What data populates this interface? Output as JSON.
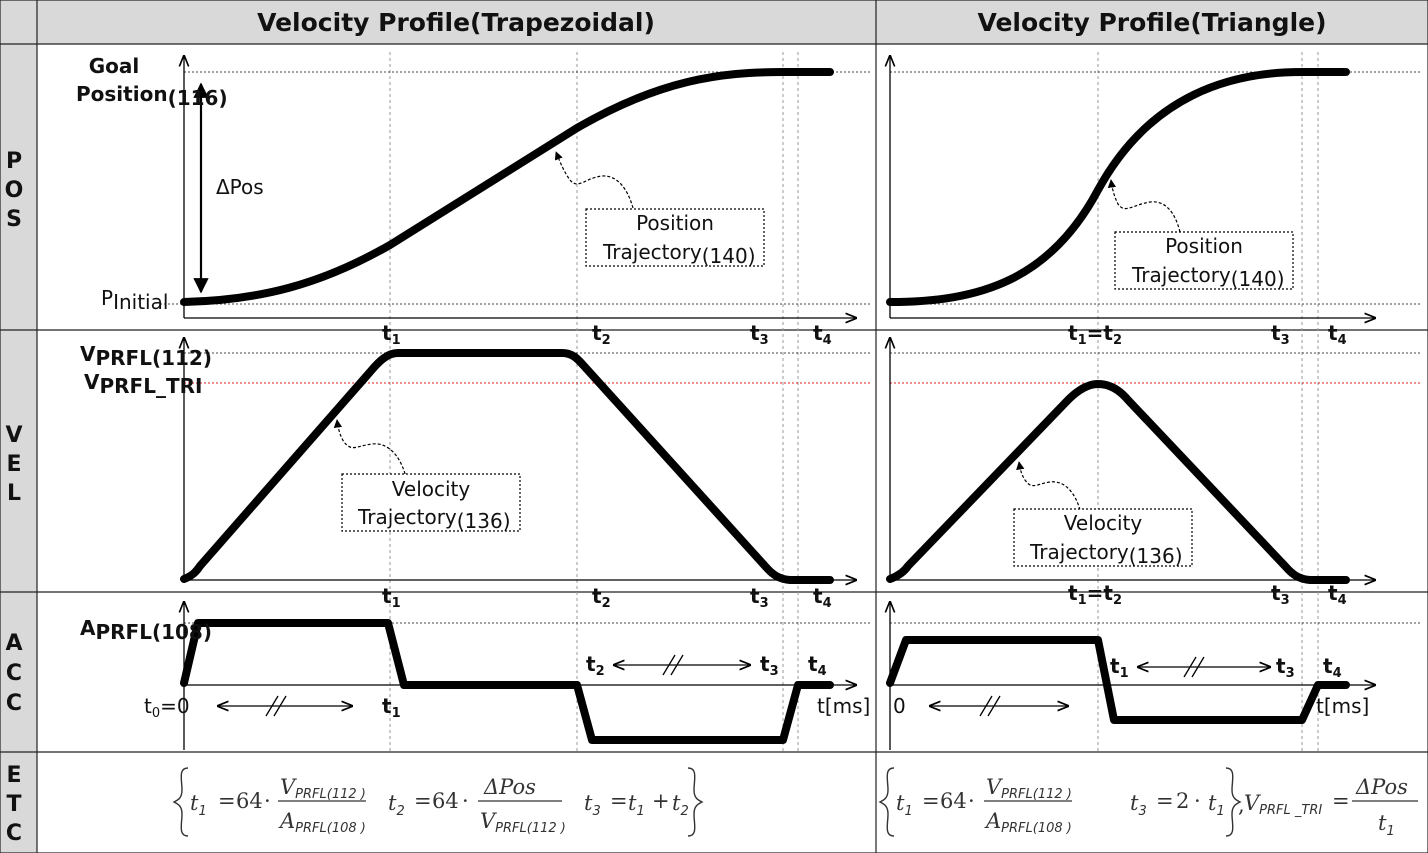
{
  "headers": {
    "trapezoidal": "Velocity Profile(Trapezoidal)",
    "triangle": "Velocity Profile(Triangle)"
  },
  "row_labels": {
    "pos": [
      "P",
      "O",
      "S"
    ],
    "vel": [
      "V",
      "E",
      "L"
    ],
    "acc": [
      "A",
      "C",
      "C"
    ],
    "etc": [
      "E",
      "T",
      "C"
    ]
  },
  "pos": {
    "goal_line1": "Goal",
    "goal_line2": "Position",
    "goal_sub": "(116)",
    "delta_pos": "ΔPos",
    "p_initial_main": "P",
    "p_initial_sub": "Initial",
    "callout_line1": "Position",
    "callout_line2": "Trajectory",
    "callout_sub": "(140)"
  },
  "vel": {
    "vprfl_main": "V",
    "vprfl_sub": "PRFL(112)",
    "vtri_main": "V",
    "vtri_sub": "PRFL_TRI",
    "vtri_color": "#e02020",
    "callout_line1": "Velocity",
    "callout_line2": "Trajectory",
    "callout_sub": "(136)"
  },
  "acc": {
    "aprfl_main": "A",
    "aprfl_sub": "PRFL(108)",
    "t0_main": "t",
    "t0_sub": "0",
    "t0_rest": "=0",
    "zero": "0",
    "time_axis": "t[ms]"
  },
  "ticks": {
    "t_main": "t",
    "s1": "1",
    "s2": "2",
    "s3": "3",
    "s4": "4",
    "equals": "="
  },
  "etc": {
    "t1": "t",
    "t1_sub": "1",
    "eq": "=",
    "c64": "64",
    "dot": "·",
    "plus": "+",
    "V": "V",
    "A": "A",
    "sub_vprfl": "PRFL(112 )",
    "sub_aprfl": "PRFL(108 )",
    "dpos": "ΔPos",
    "t2_sub": "2",
    "t3_sub": "3",
    "two": "2",
    "comma": ",",
    "vtri_sub": "PRFL _TRI"
  }
}
